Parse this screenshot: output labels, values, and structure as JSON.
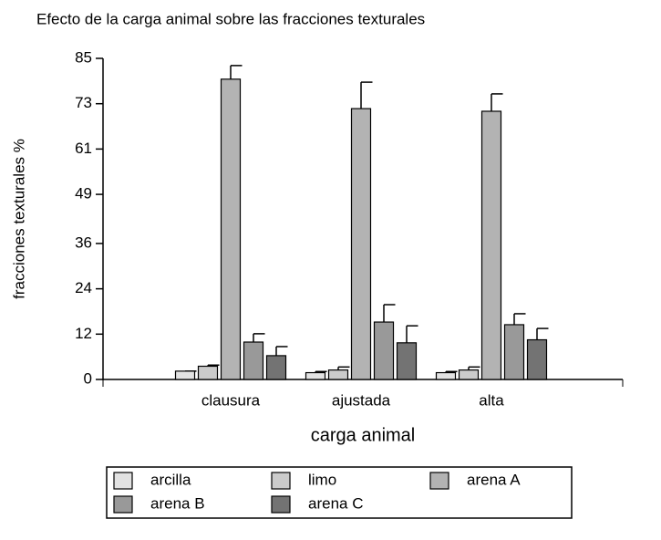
{
  "chart_data": {
    "type": "bar",
    "title": "Efecto de la carga animal sobre las fracciones texturales",
    "x_label": "carga animal",
    "y_label": "fracciones texturales %",
    "categories": [
      "clausura",
      "ajustada",
      "alta"
    ],
    "series": [
      {
        "name": "arcilla",
        "color": "#e2e2e2",
        "values": [
          2.2,
          1.8,
          1.8
        ],
        "errors": [
          0,
          0.3,
          0.3
        ]
      },
      {
        "name": "limo",
        "color": "#cbcbcb",
        "values": [
          3.5,
          2.5,
          2.5
        ],
        "errors": [
          0.3,
          0.8,
          0.8
        ]
      },
      {
        "name": "arena A",
        "color": "#b3b3b3",
        "values": [
          79.5,
          71.7,
          71.0
        ],
        "errors": [
          3.6,
          7.0,
          4.6
        ]
      },
      {
        "name": "arena B",
        "color": "#999999",
        "values": [
          9.9,
          15.2,
          14.5
        ],
        "errors": [
          2.2,
          4.6,
          2.9
        ]
      },
      {
        "name": "arena C",
        "color": "#737373",
        "values": [
          6.3,
          9.7,
          10.5
        ],
        "errors": [
          2.4,
          4.5,
          3.0
        ]
      }
    ],
    "ylim": [
      0,
      85
    ],
    "yticks": [
      0,
      12,
      24,
      36,
      49,
      61,
      73,
      85
    ],
    "legend": "bottom"
  }
}
